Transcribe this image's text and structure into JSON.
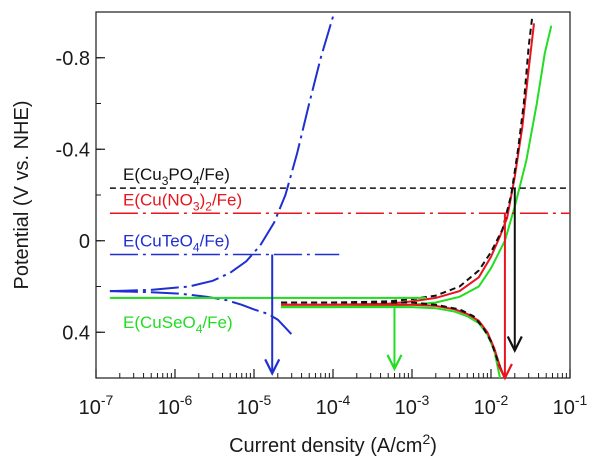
{
  "chart_data": {
    "type": "line",
    "xlabel": "Current density (A/cm",
    "xlabel_sup": "2",
    "xlabel_end": ")",
    "ylabel": "Potential (V vs. NHE)",
    "x_scale": "log",
    "xlim": [
      1e-07,
      0.1
    ],
    "ylim": [
      0.6,
      -1.0
    ],
    "y_inverted": true,
    "grid": false,
    "x_ticks": [
      {
        "value": 1e-07,
        "base": "10",
        "exp": "-7"
      },
      {
        "value": 1e-06,
        "base": "10",
        "exp": "-6"
      },
      {
        "value": 1e-05,
        "base": "10",
        "exp": "-5"
      },
      {
        "value": 0.0001,
        "base": "10",
        "exp": "-4"
      },
      {
        "value": 0.001,
        "base": "10",
        "exp": "-3"
      },
      {
        "value": 0.01,
        "base": "10",
        "exp": "-2"
      },
      {
        "value": 0.1,
        "base": "10",
        "exp": "-1"
      }
    ],
    "y_ticks": [
      {
        "value": -0.8,
        "label": "-0.8"
      },
      {
        "value": -0.4,
        "label": "-0.4"
      },
      {
        "value": 0.0,
        "label": "0"
      },
      {
        "value": 0.4,
        "label": "0.4"
      }
    ],
    "series": [
      {
        "color": "#1f2fd0",
        "dash": "28,5,3,5",
        "x": [
          1.5e-07,
          5e-07,
          1.2e-06,
          2.5e-06,
          4.5e-06,
          7e-06,
          1e-05,
          1.5e-05,
          2e-05,
          2.5e-05,
          3e-05
        ],
        "y": [
          0.22,
          0.225,
          0.232,
          0.245,
          0.26,
          0.28,
          0.3,
          0.32,
          0.345,
          0.38,
          0.41
        ]
      },
      {
        "color": "#1f2fd0",
        "dash": "28,5,3,5",
        "x": [
          1.5e-07,
          5e-07,
          1.5e-06,
          3e-06,
          5e-06,
          8e-06,
          1.2e-05,
          1.8e-05,
          2.5e-05,
          3.5e-05,
          5e-05,
          7e-05,
          0.0001
        ],
        "y": [
          0.22,
          0.215,
          0.2,
          0.175,
          0.14,
          0.09,
          0.02,
          -0.08,
          -0.2,
          -0.38,
          -0.6,
          -0.8,
          -0.98
        ]
      },
      {
        "color": "#22dd22",
        "dash": "",
        "x": [
          2.2e-05,
          5e-05,
          0.0001,
          0.0002,
          0.0005,
          0.001,
          0.002,
          0.0035,
          0.005,
          0.007,
          0.009,
          0.011,
          0.013
        ],
        "y": [
          0.29,
          0.29,
          0.29,
          0.29,
          0.29,
          0.29,
          0.295,
          0.31,
          0.33,
          0.36,
          0.41,
          0.48,
          0.6
        ]
      },
      {
        "color": "#22dd22",
        "dash": "",
        "x": [
          2.2e-05,
          0.0001,
          0.0005,
          0.001,
          0.002,
          0.004,
          0.007,
          0.01,
          0.015,
          0.02,
          0.028,
          0.038,
          0.048,
          0.058
        ],
        "y": [
          0.29,
          0.29,
          0.285,
          0.28,
          0.27,
          0.245,
          0.2,
          0.12,
          0.0,
          -0.15,
          -0.35,
          -0.6,
          -0.82,
          -0.94
        ]
      },
      {
        "color": "#e8141e",
        "dash": "",
        "x": [
          2.2e-05,
          0.0001,
          0.0005,
          0.001,
          0.002,
          0.0035,
          0.005,
          0.007,
          0.009,
          0.011,
          0.013,
          0.015
        ],
        "y": [
          0.28,
          0.28,
          0.28,
          0.28,
          0.285,
          0.3,
          0.32,
          0.35,
          0.4,
          0.47,
          0.55,
          0.6
        ]
      },
      {
        "color": "#e8141e",
        "dash": "",
        "x": [
          2.2e-05,
          0.0001,
          0.0005,
          0.001,
          0.002,
          0.004,
          0.007,
          0.01,
          0.013,
          0.016,
          0.02,
          0.025,
          0.03,
          0.035
        ],
        "y": [
          0.28,
          0.28,
          0.275,
          0.265,
          0.25,
          0.22,
          0.16,
          0.07,
          -0.02,
          -0.1,
          -0.28,
          -0.5,
          -0.75,
          -0.95
        ]
      },
      {
        "color": "#111111",
        "dash": "6,4",
        "x": [
          2.2e-05,
          0.0001,
          0.0005,
          0.001,
          0.002,
          0.004,
          0.006,
          0.008,
          0.01,
          0.012,
          0.014
        ],
        "y": [
          0.27,
          0.27,
          0.27,
          0.27,
          0.28,
          0.3,
          0.33,
          0.38,
          0.44,
          0.52,
          0.58
        ]
      },
      {
        "color": "#111111",
        "dash": "6,4",
        "x": [
          2.2e-05,
          0.0001,
          0.0005,
          0.001,
          0.002,
          0.004,
          0.007,
          0.01,
          0.014,
          0.018,
          0.022,
          0.026,
          0.03,
          0.033
        ],
        "y": [
          0.27,
          0.27,
          0.265,
          0.255,
          0.24,
          0.2,
          0.13,
          0.05,
          -0.05,
          -0.2,
          -0.4,
          -0.6,
          -0.85,
          -0.97
        ]
      },
      {
        "color": "#22dd22",
        "dash": "",
        "x": [
          1.5e-07,
          0.0015
        ],
        "y": [
          0.25,
          0.25
        ]
      }
    ],
    "reference_lines": [
      {
        "label_pre": "E(Cu",
        "sub1": "3",
        "mid": "PO",
        "sub2": "4",
        "post": "/Fe)",
        "y": -0.23,
        "x_start": 1.5e-07,
        "x_end": 0.1,
        "color": "#111111",
        "dash": "6,4",
        "label_x": 1.3e-07,
        "label_dy": -8
      },
      {
        "label_pre": "E(Cu(NO",
        "sub1": "3",
        "mid": ")",
        "sub2": "2",
        "post": "/Fe)",
        "y": -0.12,
        "x_start": 1.5e-07,
        "x_end": 0.1,
        "color": "#e8141e",
        "dash": "28,5,3,5",
        "label_x": 1.3e-07,
        "label_dy": -8
      },
      {
        "label_pre": "E(CuTeO",
        "sub1": "",
        "mid": "",
        "sub2": "4",
        "post": "/Fe)",
        "y": 0.06,
        "x_start": 1.5e-07,
        "x_end": 0.00012,
        "color": "#1f2fd0",
        "dash": "28,5,3,5",
        "label_x": 1.3e-07,
        "label_dy": -8
      },
      {
        "label_pre": "E(CuSeO",
        "sub1": "",
        "mid": "",
        "sub2": "4",
        "post": "/Fe)",
        "y": 0.25,
        "x_start": 1.5e-07,
        "x_end": 0.0015,
        "color": "#22dd22",
        "dash": "",
        "label_x": 1.3e-07,
        "label_dy": 30
      }
    ],
    "arrows": [
      {
        "x": 1.7e-05,
        "y_from": 0.06,
        "y_to": 0.58,
        "color": "#1f2fd0"
      },
      {
        "x": 0.0006,
        "y_from": 0.29,
        "y_to": 0.56,
        "color": "#22dd22"
      },
      {
        "x": 0.015,
        "y_from": -0.12,
        "y_to": 0.6,
        "color": "#e8141e"
      },
      {
        "x": 0.02,
        "y_from": -0.23,
        "y_to": 0.48,
        "color": "#111111"
      }
    ]
  }
}
